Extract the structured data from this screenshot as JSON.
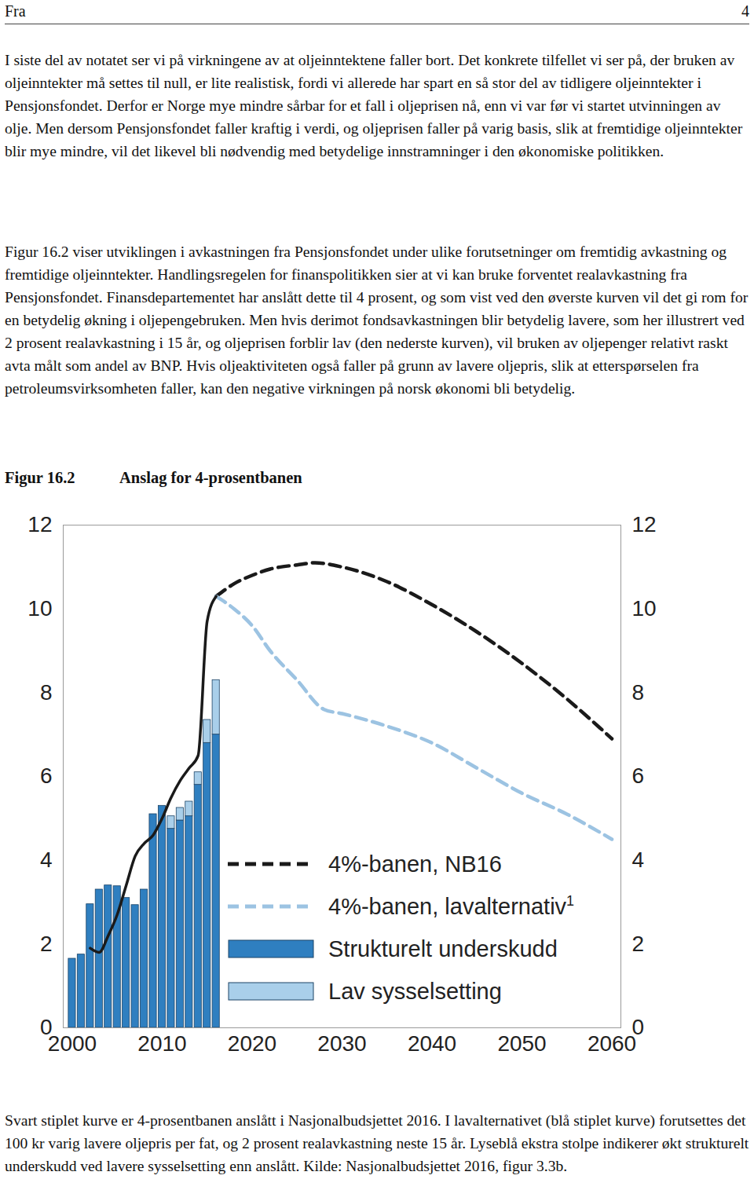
{
  "header": {
    "left": "Fra",
    "right": "4"
  },
  "paragraphs": [
    "I siste del av notatet ser vi på virkningene av at oljeinntektene faller bort. Det konkrete tilfellet vi ser på, der bruken av oljeinntekter må settes til null, er lite realistisk, fordi vi allerede har spart en så stor del av tidligere oljeinntekter i Pensjonsfondet. Derfor er Norge mye mindre sårbar for et fall i oljeprisen nå, enn vi var før vi startet utvinningen av olje. Men dersom Pensjonsfondet faller kraftig i verdi, og oljeprisen faller på varig basis, slik at fremtidige oljeinntekter blir mye mindre, vil det likevel bli nødvendig med betydelige innstramninger i den økonomiske politikken.",
    "Figur 16.2 viser utviklingen i avkastningen fra Pensjonsfondet under ulike forutsetninger om fremtidig avkastning og fremtidige oljeinntekter. Handlingsregelen for finanspolitikken sier at vi kan bruke forventet realavkastning fra Pensjonsfondet. Finansdepartementet har anslått dette til 4 prosent, og som vist ved den øverste kurven vil det gi rom for en betydelig økning i oljepengebruken. Men hvis derimot fondsavkastningen blir betydelig lavere, som her illustrert ved 2 prosent realavkastning i 15 år, og oljeprisen forblir lav (den nederste kurven), vil bruken av oljepenger relativt raskt avta målt som andel av BNP. Hvis oljeaktiviteten også faller på grunn av lavere oljepris, slik at etterspørselen fra petroleumsvirksomheten faller, kan den negative virkningen på norsk økonomi bli betydelig."
  ],
  "figure": {
    "label": "Figur 16.2",
    "title": "Anslag for 4-prosentbanen"
  },
  "chart_data": {
    "type": "bar",
    "xlim": [
      1999,
      2061
    ],
    "xticks": [
      2000,
      2010,
      2020,
      2030,
      2040,
      2050,
      2060
    ],
    "ylim": [
      0,
      12
    ],
    "yticks": [
      0,
      2,
      4,
      6,
      8,
      10,
      12
    ],
    "stacked": true,
    "legend": "bottom-right",
    "series": [
      {
        "name": "4%-banen, NB16",
        "type": "line",
        "line_style": "dashed",
        "color": "#1a1a1a",
        "x": [
          2016,
          2018,
          2020,
          2022,
          2025,
          2027,
          2030,
          2035,
          2040,
          2045,
          2050,
          2055,
          2060
        ],
        "values": [
          10.3,
          10.6,
          10.8,
          10.95,
          11.05,
          11.1,
          11.0,
          10.65,
          10.1,
          9.45,
          8.7,
          7.85,
          6.9
        ]
      },
      {
        "name": "4%-banen, lavalternativ",
        "name_superscript": "1",
        "type": "line",
        "line_style": "dashed",
        "color": "#9cc3e2",
        "x": [
          2016,
          2018,
          2020,
          2022,
          2025,
          2028,
          2030,
          2035,
          2040,
          2045,
          2050,
          2055,
          2060
        ],
        "values": [
          10.3,
          10.0,
          9.6,
          9.0,
          8.3,
          7.6,
          7.5,
          7.2,
          6.8,
          6.2,
          5.6,
          5.1,
          4.5
        ]
      },
      {
        "name": "Strukturelt underskudd",
        "type": "bar",
        "color": "#2f7fc0",
        "x": [
          2000,
          2001,
          2002,
          2003,
          2004,
          2005,
          2006,
          2007,
          2008,
          2009,
          2010,
          2011,
          2012,
          2013,
          2014,
          2015,
          2016
        ],
        "values": [
          1.65,
          1.75,
          2.95,
          3.3,
          3.4,
          3.38,
          3.1,
          2.93,
          3.3,
          5.1,
          5.3,
          4.75,
          4.95,
          5.05,
          5.8,
          6.8,
          7.0
        ]
      },
      {
        "name": "Lav sysselsetting",
        "type": "bar",
        "color": "#a9cfea",
        "x": [
          2000,
          2001,
          2002,
          2003,
          2004,
          2005,
          2006,
          2007,
          2008,
          2009,
          2010,
          2011,
          2012,
          2013,
          2014,
          2015,
          2016
        ],
        "values": [
          null,
          null,
          null,
          null,
          null,
          null,
          null,
          null,
          null,
          null,
          null,
          0.3,
          0.3,
          0.35,
          0.3,
          0.55,
          1.3
        ]
      },
      {
        "type": "line",
        "line_style": "solid",
        "color": "#1a1a1a",
        "x": [
          2002,
          2003,
          2004,
          2005,
          2006,
          2007,
          2008,
          2009,
          2010,
          2011,
          2012,
          2013,
          2014,
          2015,
          2016
        ],
        "values": [
          1.9,
          1.8,
          2.2,
          2.7,
          3.4,
          4.1,
          4.4,
          4.6,
          5.0,
          5.5,
          5.9,
          6.2,
          6.5,
          9.7,
          10.3
        ]
      }
    ]
  },
  "caption": "Svart stiplet kurve er 4-prosentbanen anslått i Nasjonalbudsjettet 2016. I lavalternativet (blå stiplet kurve) forutsettes det 100 kr varig lavere oljepris per fat, og 2 prosent realavkastning neste 15 år. Lyseblå ekstra stolpe indikerer økt strukturelt underskudd ved lavere sysselsetting enn anslått. Kilde: Nasjonalbudsjettet 2016, figur 3.3b."
}
